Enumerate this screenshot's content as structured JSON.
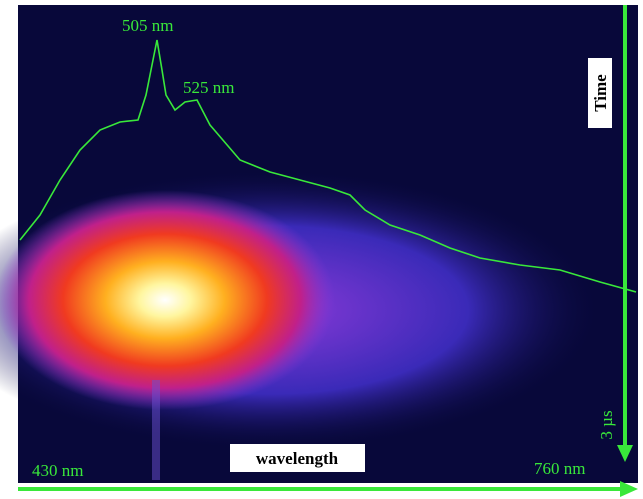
{
  "annotations": {
    "peak_1": "505 nm",
    "peak_2": "525 nm",
    "time_axis": "Time",
    "time_span": "3 µs",
    "wavelength_axis": "wavelength",
    "wavelength_start": "430 nm",
    "wavelength_end": "760 nm"
  }
}
